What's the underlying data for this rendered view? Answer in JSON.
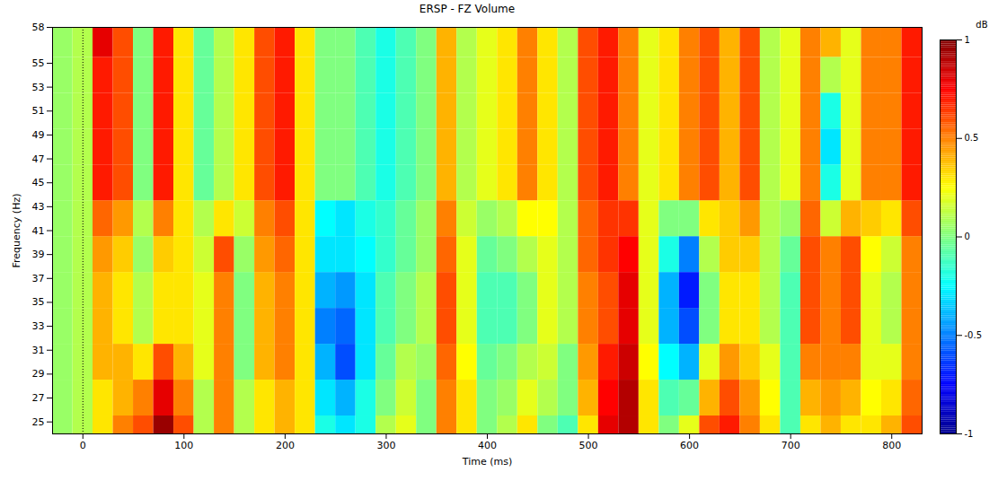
{
  "chart_data": {
    "type": "heatmap",
    "title": "ERSP - FZ Volume",
    "x_label": "Time (ms)",
    "y_label": "Frequency (Hz)",
    "x": [
      -20,
      0,
      20,
      40,
      60,
      80,
      100,
      120,
      140,
      160,
      180,
      200,
      220,
      240,
      260,
      280,
      300,
      320,
      340,
      360,
      380,
      400,
      420,
      440,
      460,
      480,
      500,
      520,
      540,
      560,
      580,
      600,
      620,
      640,
      660,
      680,
      700,
      720,
      740,
      760,
      780,
      800,
      820
    ],
    "y": [
      24,
      27,
      30,
      33,
      36,
      39,
      42,
      45,
      48,
      51,
      54,
      57
    ],
    "z": [
      [
        0.05,
        0.1,
        0.3,
        0.5,
        0.6,
        0.95,
        0.6,
        0.1,
        0.5,
        0.1,
        0.3,
        0.4,
        0.3,
        -0.2,
        -0.3,
        -0.2,
        0.1,
        0.2,
        0,
        0.5,
        0.3,
        0,
        0.1,
        0.3,
        0,
        -0.1,
        0.3,
        0.8,
        0.9,
        0.3,
        0,
        0.2,
        0.6,
        0.7,
        0.5,
        0.3,
        -0.1,
        0.3,
        0.4,
        0.3,
        0.3,
        0.4,
        0.6
      ],
      [
        0.05,
        0.1,
        0.3,
        0.4,
        0.5,
        0.8,
        0.5,
        0.1,
        0.5,
        0.1,
        0.3,
        0.4,
        0.3,
        -0.3,
        -0.4,
        -0.2,
        0,
        0.15,
        0,
        0.5,
        0.3,
        0,
        0.05,
        0.2,
        0.1,
        0,
        0.4,
        0.75,
        0.9,
        0.3,
        -0.1,
        -0.05,
        0.4,
        0.6,
        0.45,
        0.25,
        -0.1,
        0.4,
        0.45,
        0.4,
        0.25,
        0.3,
        0.55
      ],
      [
        0.05,
        0.1,
        0.4,
        0.4,
        0.3,
        0.6,
        0.4,
        0.2,
        0.5,
        0,
        0.4,
        0.5,
        0.3,
        -0.4,
        -0.6,
        -0.3,
        -0.05,
        0.1,
        0.05,
        0.55,
        0.25,
        -0.05,
        0,
        0.1,
        0.15,
        0,
        0.45,
        0.7,
        0.85,
        0.25,
        -0.25,
        -0.4,
        0.2,
        0.45,
        0.35,
        0.2,
        -0.1,
        0.5,
        0.5,
        0.5,
        0.2,
        0.2,
        0.5
      ],
      [
        0.05,
        0.1,
        0.4,
        0.3,
        0.1,
        0.3,
        0.3,
        0.2,
        0.5,
        0,
        0.4,
        0.5,
        0.3,
        -0.5,
        -0.55,
        -0.3,
        -0.1,
        0,
        0.1,
        0.6,
        0.2,
        -0.1,
        -0.1,
        0,
        0.2,
        0.1,
        0.5,
        0.6,
        0.8,
        0.2,
        -0.4,
        -0.6,
        0,
        0.3,
        0.3,
        0.1,
        -0.1,
        0.6,
        0.5,
        0.6,
        0.2,
        0.1,
        0.5
      ],
      [
        0.05,
        0.1,
        0.4,
        0.3,
        0.1,
        0.3,
        0.3,
        0.2,
        0.5,
        0,
        0.4,
        0.5,
        0.3,
        -0.4,
        -0.45,
        -0.3,
        -0.1,
        0,
        0.1,
        0.6,
        0.2,
        -0.1,
        -0.1,
        0,
        0.2,
        0.1,
        0.5,
        0.6,
        0.8,
        0.2,
        -0.4,
        -0.7,
        0,
        0.3,
        0.3,
        0.1,
        -0.1,
        0.6,
        0.5,
        0.6,
        0.2,
        0.1,
        0.5
      ],
      [
        0.05,
        0.1,
        0.45,
        0.35,
        0.05,
        0.35,
        0.3,
        0.15,
        0.6,
        0.05,
        0.45,
        0.55,
        0.3,
        -0.3,
        -0.3,
        -0.25,
        -0.15,
        -0.05,
        0.05,
        0.55,
        0.2,
        -0.05,
        0,
        0.1,
        0.2,
        0.1,
        0.55,
        0.65,
        0.75,
        0.2,
        -0.2,
        -0.5,
        0.1,
        0.35,
        0.35,
        0.1,
        -0.05,
        0.6,
        0.5,
        0.6,
        0.25,
        0.15,
        0.5
      ],
      [
        0.05,
        0.1,
        0.55,
        0.45,
        0.1,
        0.5,
        0.3,
        0.1,
        0.3,
        0.15,
        0.5,
        0.6,
        0.3,
        -0.25,
        -0.3,
        -0.2,
        -0.15,
        -0.05,
        0.05,
        0.5,
        0.15,
        0.05,
        0.1,
        0.25,
        0.25,
        0.1,
        0.55,
        0.65,
        0.65,
        0.2,
        0,
        0,
        0.3,
        0.35,
        0.45,
        0.1,
        0.05,
        0.55,
        0.15,
        0.4,
        0.35,
        0.3,
        0.6
      ],
      [
        0.05,
        0.1,
        0.7,
        0.6,
        0,
        0.7,
        0.3,
        -0.05,
        0.1,
        0.3,
        0.6,
        0.7,
        0.3,
        0,
        0,
        -0.1,
        -0.2,
        -0.1,
        0,
        0.4,
        0.1,
        0.2,
        0.3,
        0.5,
        0.3,
        0.1,
        0.6,
        0.7,
        0.5,
        0.2,
        0.3,
        0.5,
        0.6,
        0.4,
        0.6,
        0.1,
        0.2,
        0.5,
        -0.2,
        0.2,
        0.5,
        0.5,
        0.7
      ],
      [
        0.05,
        0.1,
        0.7,
        0.6,
        0,
        0.7,
        0.3,
        -0.05,
        0.1,
        0.3,
        0.6,
        0.7,
        0.3,
        0,
        0,
        -0.1,
        -0.2,
        -0.1,
        0,
        0.4,
        0.1,
        0.2,
        0.3,
        0.5,
        0.3,
        0.1,
        0.6,
        0.7,
        0.5,
        0.2,
        0.3,
        0.5,
        0.6,
        0.4,
        0.6,
        0.1,
        0.2,
        0.5,
        -0.3,
        0.2,
        0.5,
        0.5,
        0.7
      ],
      [
        0.05,
        0.1,
        0.7,
        0.6,
        0,
        0.7,
        0.3,
        -0.05,
        0.1,
        0.3,
        0.6,
        0.7,
        0.3,
        0,
        0,
        -0.1,
        -0.2,
        -0.1,
        0,
        0.4,
        0.1,
        0.2,
        0.3,
        0.5,
        0.3,
        0.1,
        0.6,
        0.7,
        0.5,
        0.2,
        0.3,
        0.5,
        0.6,
        0.4,
        0.6,
        0.1,
        0.2,
        0.5,
        -0.2,
        0.2,
        0.5,
        0.5,
        0.7
      ],
      [
        0.05,
        0.1,
        0.7,
        0.6,
        0,
        0.7,
        0.3,
        -0.05,
        0.1,
        0.3,
        0.6,
        0.7,
        0.3,
        0,
        0,
        -0.1,
        -0.2,
        -0.1,
        0,
        0.4,
        0.1,
        0.2,
        0.3,
        0.5,
        0.3,
        0.1,
        0.6,
        0.7,
        0.5,
        0.2,
        0.3,
        0.5,
        0.6,
        0.4,
        0.6,
        0.1,
        0.2,
        0.5,
        0.1,
        0.2,
        0.5,
        0.5,
        0.7
      ],
      [
        0.05,
        0.1,
        0.8,
        0.6,
        0,
        0.7,
        0.3,
        -0.05,
        0.1,
        0.3,
        0.6,
        0.7,
        0.3,
        0,
        0,
        -0.1,
        -0.2,
        -0.1,
        0,
        0.4,
        0.1,
        0.2,
        0.3,
        0.5,
        0.3,
        0.1,
        0.6,
        0.7,
        0.5,
        0.2,
        0.3,
        0.5,
        0.6,
        0.4,
        0.6,
        0.1,
        0.2,
        0.5,
        0.4,
        0.2,
        0.5,
        0.5,
        0.7
      ]
    ],
    "xlim": [
      -30,
      830
    ],
    "xticks": [
      0,
      100,
      200,
      300,
      400,
      500,
      600,
      700,
      800
    ],
    "ylim": [
      24,
      58
    ],
    "yticks": [
      25,
      27,
      29,
      31,
      33,
      35,
      37,
      39,
      41,
      43,
      45,
      47,
      49,
      51,
      53,
      55,
      58
    ],
    "event_marker": 0,
    "colorbar_label": "dB",
    "colorbar_lim": [
      -1,
      1
    ],
    "colorbar_ticks": [
      -1,
      -0.5,
      0,
      0.5,
      1
    ]
  }
}
